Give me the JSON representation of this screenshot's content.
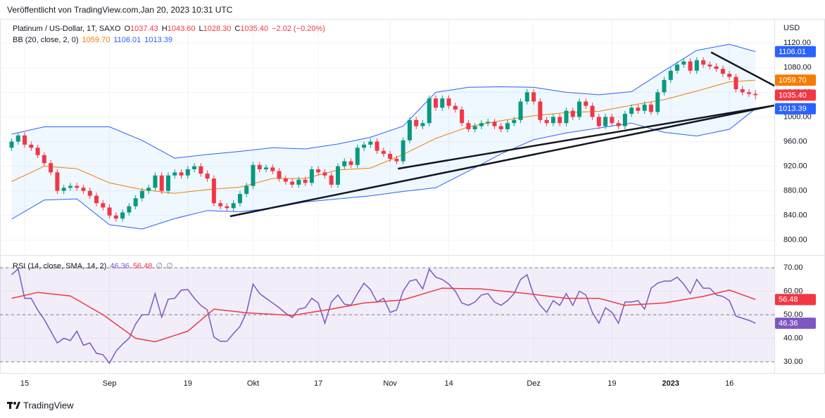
{
  "header": "Veröffentlicht von TradingView.com,Jan 20, 2023 10:31 UTC",
  "footer": "TradingView",
  "chart_data": [
    {
      "type": "candlestick",
      "unit": "USD",
      "legend": {
        "symbol": "Platinum / US-Dollar, 1T, SAXO",
        "fields": [
          {
            "key": "O",
            "text": "1037.43"
          },
          {
            "key": "H",
            "text": "1043.60"
          },
          {
            "key": "L",
            "text": "1028.30"
          },
          {
            "key": "C",
            "text": "1035.40"
          }
        ],
        "change": "−2.02 (−0.20%)",
        "color": "#f23645"
      },
      "categories": [
        null,
        null,
        "15",
        null,
        null,
        null,
        null,
        null,
        null,
        null,
        null,
        null,
        null,
        null,
        null,
        "Sep",
        null,
        null,
        null,
        null,
        null,
        null,
        null,
        null,
        null,
        null,
        null,
        "19",
        null,
        null,
        null,
        null,
        null,
        null,
        null,
        null,
        null,
        "Okt",
        null,
        null,
        null,
        null,
        null,
        null,
        null,
        null,
        null,
        "17",
        null,
        null,
        null,
        null,
        null,
        null,
        null,
        null,
        null,
        null,
        "Nov",
        null,
        null,
        null,
        null,
        null,
        null,
        null,
        null,
        "14",
        null,
        null,
        null,
        null,
        null,
        null,
        null,
        null,
        null,
        null,
        null,
        null,
        "Dez",
        null,
        null,
        null,
        null,
        null,
        null,
        null,
        null,
        null,
        null,
        null,
        "19",
        null,
        null,
        null,
        null,
        null,
        null,
        null,
        null,
        "2023",
        null,
        null,
        null,
        null,
        null,
        null,
        null,
        null,
        "16",
        null,
        null,
        null,
        null
      ],
      "series": [
        {
          "name": "Platinum / US-Dollar, 1T, SAXO",
          "color_up": "#089981",
          "color_down": "#f23645",
          "last_label": "1035.40",
          "open": [
            950,
            960,
            970,
            955,
            950,
            938,
            925,
            910,
            880,
            885,
            888,
            885,
            880,
            872,
            860,
            853,
            840,
            835,
            845,
            855,
            868,
            880,
            885,
            905,
            880,
            905,
            910,
            905,
            915,
            920,
            908,
            900,
            860,
            855,
            852,
            860,
            875,
            888,
            922,
            915,
            918,
            912,
            900,
            895,
            890,
            898,
            893,
            915,
            910,
            905,
            890,
            920,
            928,
            922,
            950,
            955,
            960,
            945,
            940,
            932,
            928,
            962,
            995,
            985,
            990,
            1030,
            1015,
            1030,
            1018,
            1012,
            990,
            980,
            985,
            990,
            992,
            985,
            980,
            990,
            995,
            1025,
            1040,
            1025,
            995,
            990,
            1000,
            990,
            1010,
            1000,
            1025,
            1018,
            1000,
            985,
            1000,
            990,
            985,
            1005,
            1015,
            1010,
            1020,
            1008,
            1040,
            1060,
            1075,
            1085,
            1090,
            1075,
            1092,
            1085,
            1082,
            1078,
            1070,
            1065,
            1045,
            1040,
            1037.43
          ],
          "high": [
            965,
            975,
            975,
            960,
            955,
            943,
            930,
            915,
            890,
            893,
            893,
            890,
            885,
            877,
            865,
            858,
            845,
            850,
            860,
            873,
            885,
            890,
            910,
            910,
            910,
            915,
            915,
            920,
            925,
            925,
            913,
            905,
            865,
            860,
            865,
            880,
            893,
            927,
            927,
            923,
            923,
            917,
            905,
            900,
            903,
            903,
            920,
            920,
            915,
            910,
            925,
            933,
            933,
            955,
            960,
            965,
            965,
            950,
            945,
            937,
            967,
            1000,
            1000,
            995,
            1035,
            1035,
            1035,
            1035,
            1023,
            1017,
            995,
            990,
            995,
            997,
            997,
            990,
            995,
            1000,
            1030,
            1045,
            1045,
            1030,
            1000,
            1005,
            1005,
            1015,
            1015,
            1030,
            1030,
            1023,
            1005,
            1005,
            1005,
            995,
            1010,
            1020,
            1020,
            1025,
            1025,
            1045,
            1065,
            1080,
            1090,
            1095,
            1095,
            1097,
            1097,
            1090,
            1087,
            1083,
            1075,
            1070,
            1050,
            1045,
            1043.6
          ],
          "low": [
            945,
            955,
            950,
            945,
            933,
            920,
            905,
            875,
            875,
            880,
            880,
            875,
            867,
            855,
            848,
            835,
            830,
            830,
            840,
            850,
            863,
            875,
            880,
            875,
            875,
            900,
            900,
            900,
            910,
            903,
            895,
            855,
            850,
            847,
            847,
            855,
            870,
            883,
            910,
            910,
            907,
            895,
            890,
            885,
            885,
            888,
            888,
            905,
            900,
            885,
            885,
            915,
            917,
            917,
            945,
            950,
            940,
            935,
            927,
            923,
            923,
            957,
            980,
            980,
            985,
            1010,
            1010,
            1013,
            1007,
            985,
            975,
            975,
            980,
            985,
            980,
            975,
            975,
            985,
            990,
            1020,
            1020,
            990,
            985,
            985,
            985,
            985,
            995,
            995,
            1013,
            995,
            980,
            980,
            985,
            980,
            980,
            1000,
            1005,
            1005,
            1003,
            1003,
            1035,
            1055,
            1070,
            1080,
            1070,
            1070,
            1080,
            1077,
            1073,
            1065,
            1060,
            1040,
            1035,
            1032.43,
            1028.3
          ],
          "close": [
            960,
            970,
            955,
            950,
            938,
            925,
            910,
            880,
            885,
            888,
            885,
            880,
            872,
            860,
            853,
            840,
            835,
            845,
            855,
            868,
            880,
            885,
            905,
            880,
            905,
            910,
            905,
            915,
            920,
            908,
            900,
            860,
            855,
            852,
            860,
            875,
            888,
            922,
            915,
            918,
            912,
            900,
            895,
            890,
            898,
            893,
            915,
            910,
            905,
            890,
            920,
            928,
            922,
            950,
            955,
            960,
            945,
            940,
            932,
            928,
            962,
            995,
            985,
            990,
            1030,
            1015,
            1030,
            1018,
            1012,
            990,
            980,
            985,
            990,
            992,
            985,
            980,
            990,
            995,
            1025,
            1040,
            1025,
            995,
            990,
            1000,
            990,
            1010,
            1000,
            1025,
            1018,
            1000,
            985,
            1000,
            990,
            985,
            1005,
            1015,
            1010,
            1020,
            1008,
            1040,
            1060,
            1075,
            1085,
            1090,
            1075,
            1092,
            1085,
            1082,
            1078,
            1070,
            1065,
            1045,
            1040,
            1037.43,
            1035.4
          ]
        }
      ],
      "bands": {
        "name": "BB (20, close, 2, 0)",
        "fill": "rgba(33,150,243,0.07)",
        "x": [
          0,
          5,
          10,
          15,
          20,
          25,
          30,
          35,
          40,
          45,
          50,
          55,
          60,
          65,
          70,
          75,
          80,
          85,
          90,
          95,
          100,
          105,
          110,
          114
        ],
        "lines": [
          {
            "color": "#f57c00",
            "last_label": "1059.70",
            "values": [
              895,
              920,
              916,
              893,
              882,
              876,
              882,
              886,
              900,
              900,
              914,
              917,
              939,
              965,
              984,
              994,
              1002,
              1007,
              1009,
              1019,
              1028,
              1042,
              1057,
              1059.7
            ]
          },
          {
            "color": "#2962ff",
            "last_label": "1106.01",
            "values": [
              972,
              984,
              984,
              984,
              962,
              933,
              939,
              944,
              950,
              948,
              956,
              967,
              985,
              1040,
              1048,
              1049,
              1048,
              1040,
              1036,
              1041,
              1075,
              1108,
              1118,
              1106.01
            ]
          },
          {
            "color": "#2962ff",
            "last_label": "1013.39",
            "values": [
              834,
              865,
              867,
              825,
              818,
              835,
              848,
              846,
              852,
              862,
              867,
              872,
              879,
              885,
              912,
              940,
              963,
              974,
              982,
              990,
              975,
              969,
              980,
              1013.39
            ]
          }
        ]
      },
      "trendlines": [
        {
          "x": [
            33.5,
            116.9
          ],
          "y": [
            838.7,
            1018.6
          ]
        },
        {
          "x": [
            59.2,
            116.9
          ],
          "y": [
            916,
            1018.6
          ]
        },
        {
          "x": [
            107.2,
            116.9
          ],
          "y": [
            1105,
            1050.5
          ]
        }
      ],
      "ylim": [
        777,
        1159
      ],
      "yticks": [
        {
          "value": 800,
          "label": "800.00"
        },
        {
          "value": 840,
          "label": "840.00"
        },
        {
          "value": 880,
          "label": "880.00"
        },
        {
          "value": 920,
          "label": "920.00"
        },
        {
          "value": 960,
          "label": "960.00"
        },
        {
          "value": 1000,
          "label": "1000.00"
        },
        {
          "value": 1040,
          "label": "1040.00"
        },
        {
          "value": 1080,
          "label": "1080.00"
        },
        {
          "value": 1120,
          "label": "1120.00"
        }
      ],
      "grid": true
    },
    {
      "type": "line",
      "name": "RSI (14, close, SMA, 14, 2)",
      "extras": [
        "∅",
        "∅"
      ],
      "fill": "rgba(126,87,194,0.1)",
      "levels": [
        70,
        50,
        30
      ],
      "series": [
        {
          "name": "RSI",
          "color": "#7e57c2",
          "last_label": "46.36",
          "values": [
            67,
            69.5,
            57,
            57,
            52,
            48,
            43,
            38,
            40,
            39,
            43,
            37,
            38,
            33.6,
            33,
            29.4,
            34.5,
            37.5,
            40,
            46,
            50,
            50,
            59,
            49,
            56.6,
            57,
            60.5,
            60.7,
            57,
            54,
            52,
            40.5,
            38.7,
            38.7,
            42,
            45,
            51,
            63,
            59,
            57,
            55,
            53,
            50.6,
            48.8,
            52.4,
            53,
            57,
            55,
            46.4,
            55.4,
            58.4,
            54.5,
            54,
            59,
            63.4,
            60.7,
            55.4,
            57,
            51,
            52,
            60,
            64.3,
            65,
            61,
            69.4,
            66,
            65,
            63,
            60,
            55,
            54,
            55.4,
            58.4,
            59,
            55.4,
            54,
            56,
            59,
            65,
            67,
            58.4,
            54,
            51,
            56,
            54,
            59,
            54,
            60,
            58.4,
            51,
            46.4,
            53,
            51,
            46.4,
            55.4,
            55.4,
            56,
            52.4,
            61.3,
            63.4,
            64.3,
            64.3,
            66,
            63,
            59,
            65,
            61.3,
            61.3,
            58.4,
            57.8,
            56,
            49.4,
            48.5,
            47.6,
            46.36
          ]
        },
        {
          "name": "SMA",
          "color": "#f23645",
          "last_label": "56.48",
          "x": [
            0,
            4,
            9,
            14,
            19,
            22,
            27,
            31,
            36,
            43,
            49,
            54,
            60,
            66,
            72,
            79,
            85,
            90,
            94,
            100,
            106,
            110,
            114
          ],
          "values": [
            57,
            59.5,
            58,
            50,
            40,
            38.5,
            43,
            52.4,
            50.8,
            49.7,
            52.4,
            55,
            56.3,
            61.3,
            61,
            59,
            57,
            57,
            54,
            55,
            57.8,
            60.5,
            56.48
          ]
        }
      ],
      "ylim": [
        25.5,
        74.8
      ],
      "yticks": [
        {
          "value": 30,
          "label": "30.00"
        },
        {
          "value": 40,
          "label": "40.00"
        },
        {
          "value": 50,
          "label": "50.00"
        },
        {
          "value": 60,
          "label": "60.00"
        },
        {
          "value": 70,
          "label": "70.00"
        }
      ],
      "grid": true
    }
  ]
}
